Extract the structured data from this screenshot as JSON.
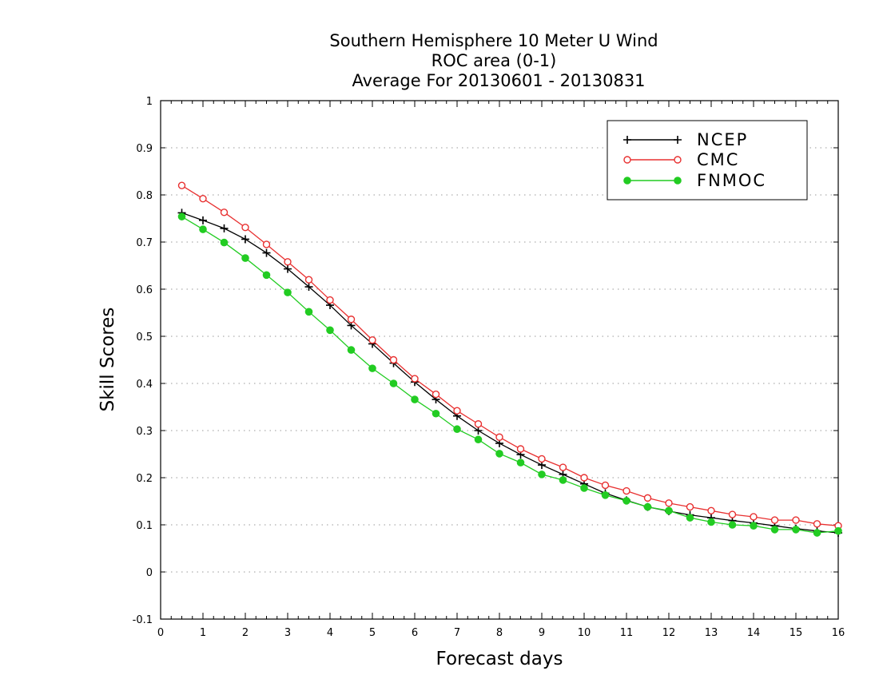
{
  "chart_data": {
    "type": "line",
    "title": [
      "Southern Hemisphere 10 Meter U Wind",
      "ROC area (0-1)",
      "Average For 20130601 - 20130831"
    ],
    "xlabel": "Forecast days",
    "ylabel": "Skill Scores",
    "xlim": [
      0,
      16
    ],
    "ylim": [
      -0.1,
      1
    ],
    "xticks": [
      "0",
      "1",
      "2",
      "3",
      "4",
      "5",
      "6",
      "7",
      "8",
      "9",
      "10",
      "11",
      "12",
      "13",
      "14",
      "15",
      "16"
    ],
    "yticks": [
      "-0.1",
      "0",
      "0.1",
      "0.2",
      "0.3",
      "0.4",
      "0.5",
      "0.6",
      "0.7",
      "0.8",
      "0.9",
      "1"
    ],
    "grid": true,
    "legend": "top-right",
    "x": [
      0.5,
      1,
      1.5,
      2,
      2.5,
      3,
      3.5,
      4,
      4.5,
      5,
      5.5,
      6,
      6.5,
      7,
      7.5,
      8,
      8.5,
      9,
      9.5,
      10,
      10.5,
      11,
      11.5,
      12,
      12.5,
      13,
      13.5,
      14,
      14.5,
      15,
      15.5,
      16
    ],
    "series": [
      {
        "name": "NCEP",
        "color": "#000000",
        "marker": "plus",
        "values": [
          0.762,
          0.746,
          0.729,
          0.706,
          0.677,
          0.643,
          0.605,
          0.566,
          0.523,
          0.484,
          0.443,
          0.403,
          0.366,
          0.331,
          0.3,
          0.273,
          0.249,
          0.227,
          0.207,
          0.187,
          0.167,
          0.152,
          0.138,
          0.129,
          0.121,
          0.115,
          0.109,
          0.104,
          0.098,
          0.092,
          0.087,
          0.083
        ]
      },
      {
        "name": "CMC",
        "color": "#e83030",
        "marker": "open-circle",
        "values": [
          0.82,
          0.792,
          0.763,
          0.731,
          0.695,
          0.658,
          0.62,
          0.577,
          0.536,
          0.492,
          0.45,
          0.41,
          0.377,
          0.342,
          0.314,
          0.286,
          0.261,
          0.24,
          0.222,
          0.2,
          0.184,
          0.172,
          0.157,
          0.146,
          0.138,
          0.13,
          0.122,
          0.117,
          0.11,
          0.11,
          0.102,
          0.098
        ]
      },
      {
        "name": "FNMOC",
        "color": "#22cc22",
        "marker": "filled-circle",
        "values": [
          0.754,
          0.727,
          0.699,
          0.666,
          0.63,
          0.593,
          0.552,
          0.513,
          0.471,
          0.432,
          0.4,
          0.366,
          0.336,
          0.303,
          0.281,
          0.251,
          0.232,
          0.207,
          0.195,
          0.178,
          0.163,
          0.151,
          0.138,
          0.13,
          0.115,
          0.106,
          0.1,
          0.098,
          0.09,
          0.09,
          0.083,
          0.087
        ]
      }
    ]
  }
}
